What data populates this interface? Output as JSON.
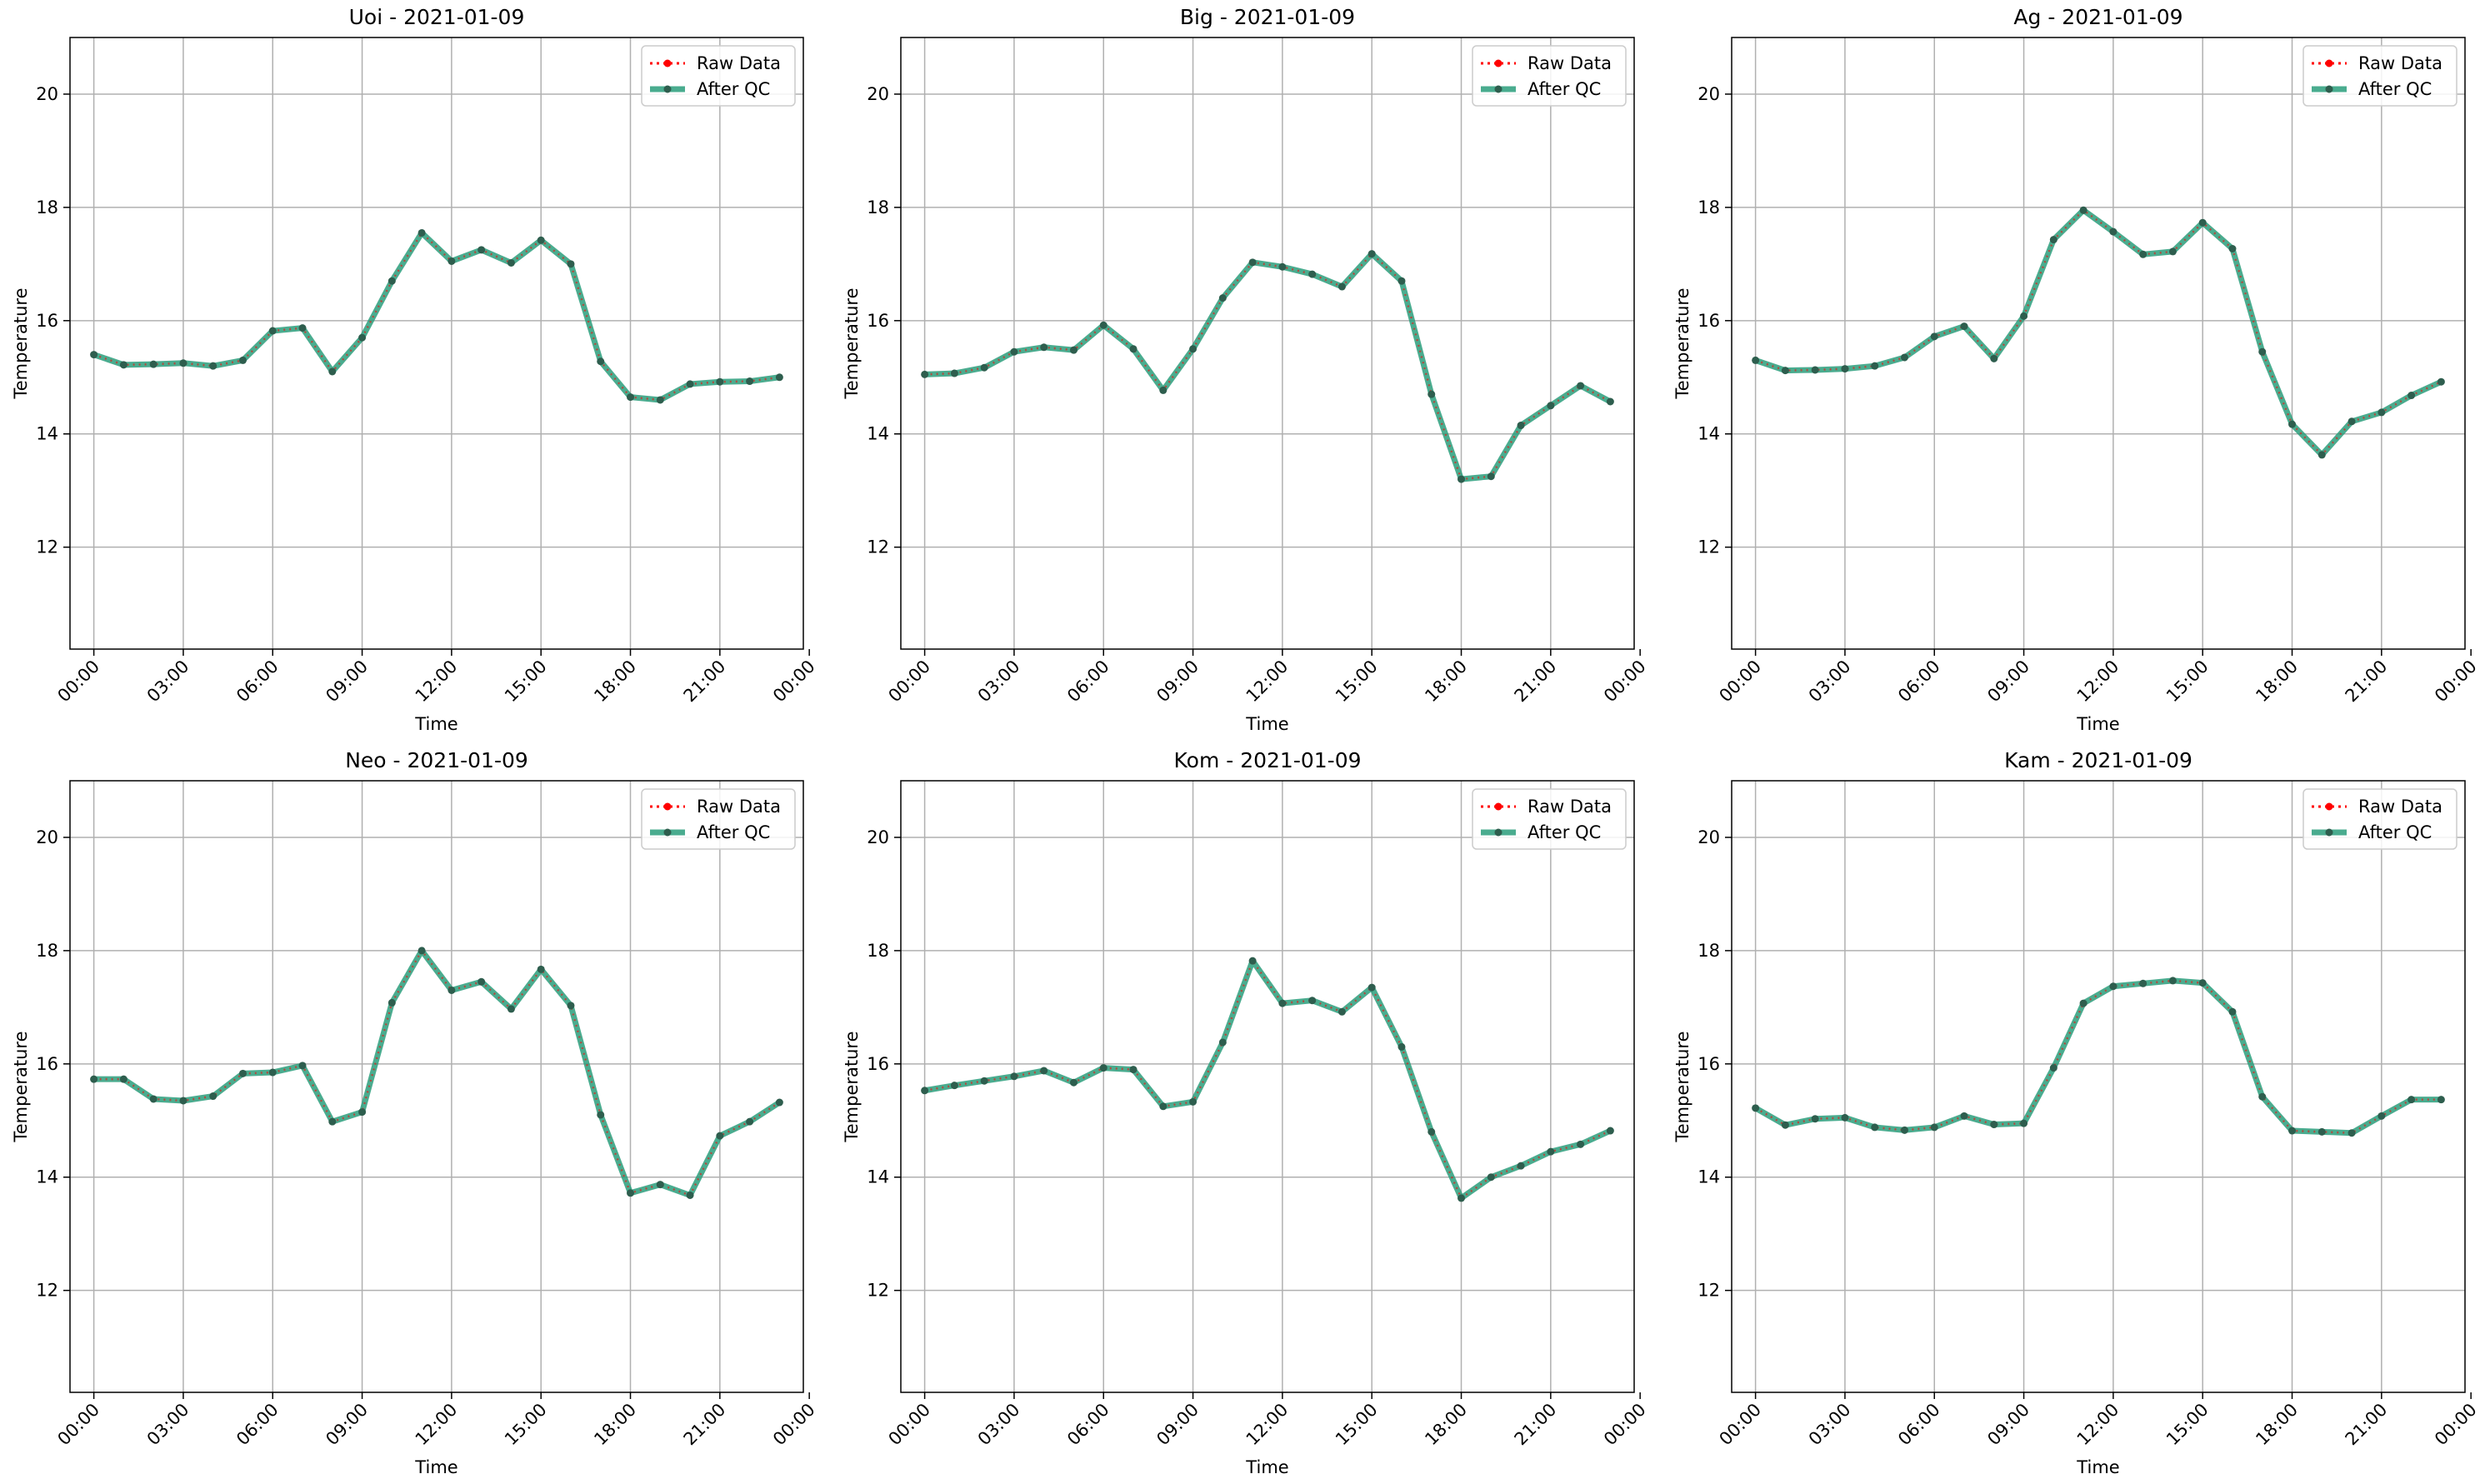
{
  "legend": {
    "raw_label": "Raw Data",
    "qc_label": "After QC",
    "placement": "upper-right"
  },
  "colors": {
    "raw": "#ff0000",
    "qc": "#2a9d7b",
    "grid": "#b0b0b0",
    "marker": "#2e5e4e"
  },
  "chart_data": [
    {
      "type": "line",
      "title": "Uoi - 2021-01-09",
      "xlabel": "Time",
      "ylabel": "Temperature",
      "xlim": [
        -0.8,
        23.8
      ],
      "ylim": [
        10.2,
        21.0
      ],
      "grid": true,
      "xticks": [
        0,
        3,
        6,
        9,
        12,
        15,
        18,
        21,
        24
      ],
      "xtick_labels": [
        "00:00",
        "03:00",
        "06:00",
        "09:00",
        "12:00",
        "15:00",
        "18:00",
        "21:00",
        "00:00"
      ],
      "yticks": [
        12,
        14,
        16,
        18,
        20
      ],
      "ytick_labels": [
        "12",
        "14",
        "16",
        "18",
        "20"
      ],
      "x": [
        0,
        1,
        2,
        3,
        4,
        5,
        6,
        7,
        8,
        9,
        10,
        11,
        12,
        13,
        14,
        15,
        16,
        17,
        18,
        19,
        20,
        21,
        22,
        23
      ],
      "series": [
        {
          "name": "Raw Data",
          "values": [
            15.4,
            15.22,
            15.23,
            15.25,
            15.2,
            15.3,
            15.82,
            15.87,
            15.1,
            15.7,
            16.7,
            17.55,
            17.05,
            17.25,
            17.02,
            17.42,
            17.0,
            15.28,
            14.65,
            14.6,
            14.88,
            14.92,
            14.93,
            15.0
          ]
        },
        {
          "name": "After QC",
          "values": [
            15.4,
            15.22,
            15.23,
            15.25,
            15.2,
            15.3,
            15.82,
            15.87,
            15.1,
            15.7,
            16.7,
            17.55,
            17.05,
            17.25,
            17.02,
            17.42,
            17.0,
            15.28,
            14.65,
            14.6,
            14.88,
            14.92,
            14.93,
            15.0
          ]
        }
      ]
    },
    {
      "type": "line",
      "title": "Big - 2021-01-09",
      "xlabel": "Time",
      "ylabel": "Temperature",
      "xlim": [
        -0.8,
        23.8
      ],
      "ylim": [
        10.2,
        21.0
      ],
      "grid": true,
      "xticks": [
        0,
        3,
        6,
        9,
        12,
        15,
        18,
        21,
        24
      ],
      "xtick_labels": [
        "00:00",
        "03:00",
        "06:00",
        "09:00",
        "12:00",
        "15:00",
        "18:00",
        "21:00",
        "00:00"
      ],
      "yticks": [
        12,
        14,
        16,
        18,
        20
      ],
      "ytick_labels": [
        "12",
        "14",
        "16",
        "18",
        "20"
      ],
      "x": [
        0,
        1,
        2,
        3,
        4,
        5,
        6,
        7,
        8,
        9,
        10,
        11,
        12,
        13,
        14,
        15,
        16,
        17,
        18,
        19,
        20,
        21,
        22,
        23
      ],
      "series": [
        {
          "name": "Raw Data",
          "values": [
            15.05,
            15.07,
            15.17,
            15.45,
            15.53,
            15.48,
            15.92,
            15.5,
            14.77,
            15.5,
            16.4,
            17.03,
            16.95,
            16.82,
            16.6,
            17.18,
            16.7,
            14.7,
            13.2,
            13.25,
            14.15,
            14.5,
            14.85,
            14.57
          ]
        },
        {
          "name": "After QC",
          "values": [
            15.05,
            15.07,
            15.17,
            15.45,
            15.53,
            15.48,
            15.92,
            15.5,
            14.77,
            15.5,
            16.4,
            17.03,
            16.95,
            16.82,
            16.6,
            17.18,
            16.7,
            14.7,
            13.2,
            13.25,
            14.15,
            14.5,
            14.85,
            14.57
          ]
        }
      ]
    },
    {
      "type": "line",
      "title": "Ag - 2021-01-09",
      "xlabel": "Time",
      "ylabel": "Temperature",
      "xlim": [
        -0.8,
        23.8
      ],
      "ylim": [
        10.2,
        21.0
      ],
      "grid": true,
      "xticks": [
        0,
        3,
        6,
        9,
        12,
        15,
        18,
        21,
        24
      ],
      "xtick_labels": [
        "00:00",
        "03:00",
        "06:00",
        "09:00",
        "12:00",
        "15:00",
        "18:00",
        "21:00",
        "00:00"
      ],
      "yticks": [
        12,
        14,
        16,
        18,
        20
      ],
      "ytick_labels": [
        "12",
        "14",
        "16",
        "18",
        "20"
      ],
      "x": [
        0,
        1,
        2,
        3,
        4,
        5,
        6,
        7,
        8,
        9,
        10,
        11,
        12,
        13,
        14,
        15,
        16,
        17,
        18,
        19,
        20,
        21,
        22,
        23
      ],
      "series": [
        {
          "name": "Raw Data",
          "values": [
            15.3,
            15.12,
            15.13,
            15.15,
            15.2,
            15.35,
            15.72,
            15.9,
            15.33,
            16.08,
            17.43,
            17.95,
            17.57,
            17.17,
            17.22,
            17.73,
            17.27,
            15.45,
            14.17,
            13.63,
            14.22,
            14.38,
            14.68,
            14.92
          ]
        },
        {
          "name": "After QC",
          "values": [
            15.3,
            15.12,
            15.13,
            15.15,
            15.2,
            15.35,
            15.72,
            15.9,
            15.33,
            16.08,
            17.43,
            17.95,
            17.57,
            17.17,
            17.22,
            17.73,
            17.27,
            15.45,
            14.17,
            13.63,
            14.22,
            14.38,
            14.68,
            14.92
          ]
        }
      ]
    },
    {
      "type": "line",
      "title": "Neo - 2021-01-09",
      "xlabel": "Time",
      "ylabel": "Temperature",
      "xlim": [
        -0.8,
        23.8
      ],
      "ylim": [
        10.2,
        21.0
      ],
      "grid": true,
      "xticks": [
        0,
        3,
        6,
        9,
        12,
        15,
        18,
        21,
        24
      ],
      "xtick_labels": [
        "00:00",
        "03:00",
        "06:00",
        "09:00",
        "12:00",
        "15:00",
        "18:00",
        "21:00",
        "00:00"
      ],
      "yticks": [
        12,
        14,
        16,
        18,
        20
      ],
      "ytick_labels": [
        "12",
        "14",
        "16",
        "18",
        "20"
      ],
      "x": [
        0,
        1,
        2,
        3,
        4,
        5,
        6,
        7,
        8,
        9,
        10,
        11,
        12,
        13,
        14,
        15,
        16,
        17,
        18,
        19,
        20,
        21,
        22,
        23
      ],
      "series": [
        {
          "name": "Raw Data",
          "values": [
            15.73,
            15.73,
            15.38,
            15.35,
            15.43,
            15.83,
            15.85,
            15.97,
            14.98,
            15.15,
            17.08,
            18.0,
            17.3,
            17.45,
            16.97,
            17.67,
            17.03,
            15.1,
            13.72,
            13.87,
            13.68,
            14.73,
            14.98,
            15.32
          ]
        },
        {
          "name": "After QC",
          "values": [
            15.73,
            15.73,
            15.38,
            15.35,
            15.43,
            15.83,
            15.85,
            15.97,
            14.98,
            15.15,
            17.08,
            18.0,
            17.3,
            17.45,
            16.97,
            17.67,
            17.03,
            15.1,
            13.72,
            13.87,
            13.68,
            14.73,
            14.98,
            15.32
          ]
        }
      ]
    },
    {
      "type": "line",
      "title": "Kom - 2021-01-09",
      "xlabel": "Time",
      "ylabel": "Temperature",
      "xlim": [
        -0.8,
        23.8
      ],
      "ylim": [
        10.2,
        21.0
      ],
      "grid": true,
      "xticks": [
        0,
        3,
        6,
        9,
        12,
        15,
        18,
        21,
        24
      ],
      "xtick_labels": [
        "00:00",
        "03:00",
        "06:00",
        "09:00",
        "12:00",
        "15:00",
        "18:00",
        "21:00",
        "00:00"
      ],
      "yticks": [
        12,
        14,
        16,
        18,
        20
      ],
      "ytick_labels": [
        "12",
        "14",
        "16",
        "18",
        "20"
      ],
      "x": [
        0,
        1,
        2,
        3,
        4,
        5,
        6,
        7,
        8,
        9,
        10,
        11,
        12,
        13,
        14,
        15,
        16,
        17,
        18,
        19,
        20,
        21,
        22,
        23
      ],
      "series": [
        {
          "name": "Raw Data",
          "values": [
            15.53,
            15.62,
            15.7,
            15.78,
            15.88,
            15.67,
            15.93,
            15.9,
            15.25,
            15.33,
            16.38,
            17.82,
            17.07,
            17.12,
            16.92,
            17.35,
            16.3,
            14.8,
            13.63,
            14.0,
            14.2,
            14.45,
            14.58,
            14.82
          ]
        },
        {
          "name": "After QC",
          "values": [
            15.53,
            15.62,
            15.7,
            15.78,
            15.88,
            15.67,
            15.93,
            15.9,
            15.25,
            15.33,
            16.38,
            17.82,
            17.07,
            17.12,
            16.92,
            17.35,
            16.3,
            14.8,
            13.63,
            14.0,
            14.2,
            14.45,
            14.58,
            14.82
          ]
        }
      ]
    },
    {
      "type": "line",
      "title": "Kam - 2021-01-09",
      "xlabel": "Time",
      "ylabel": "Temperature",
      "xlim": [
        -0.8,
        23.8
      ],
      "ylim": [
        10.2,
        21.0
      ],
      "grid": true,
      "xticks": [
        0,
        3,
        6,
        9,
        12,
        15,
        18,
        21,
        24
      ],
      "xtick_labels": [
        "00:00",
        "03:00",
        "06:00",
        "09:00",
        "12:00",
        "15:00",
        "18:00",
        "21:00",
        "00:00"
      ],
      "yticks": [
        12,
        14,
        16,
        18,
        20
      ],
      "ytick_labels": [
        "12",
        "14",
        "16",
        "18",
        "20"
      ],
      "x": [
        0,
        1,
        2,
        3,
        4,
        5,
        6,
        7,
        8,
        9,
        10,
        11,
        12,
        13,
        14,
        15,
        16,
        17,
        18,
        19,
        20,
        21,
        22,
        23
      ],
      "series": [
        {
          "name": "Raw Data",
          "values": [
            15.22,
            14.92,
            15.03,
            15.05,
            14.88,
            14.83,
            14.88,
            15.08,
            14.93,
            14.95,
            15.93,
            17.07,
            17.37,
            17.42,
            17.47,
            17.43,
            16.92,
            15.42,
            14.82,
            14.8,
            14.78,
            15.08,
            15.37,
            15.37
          ]
        },
        {
          "name": "After QC",
          "values": [
            15.22,
            14.92,
            15.03,
            15.05,
            14.88,
            14.83,
            14.88,
            15.08,
            14.93,
            14.95,
            15.93,
            17.07,
            17.37,
            17.42,
            17.47,
            17.43,
            16.92,
            15.42,
            14.82,
            14.8,
            14.78,
            15.08,
            15.37,
            15.37
          ]
        }
      ]
    }
  ]
}
